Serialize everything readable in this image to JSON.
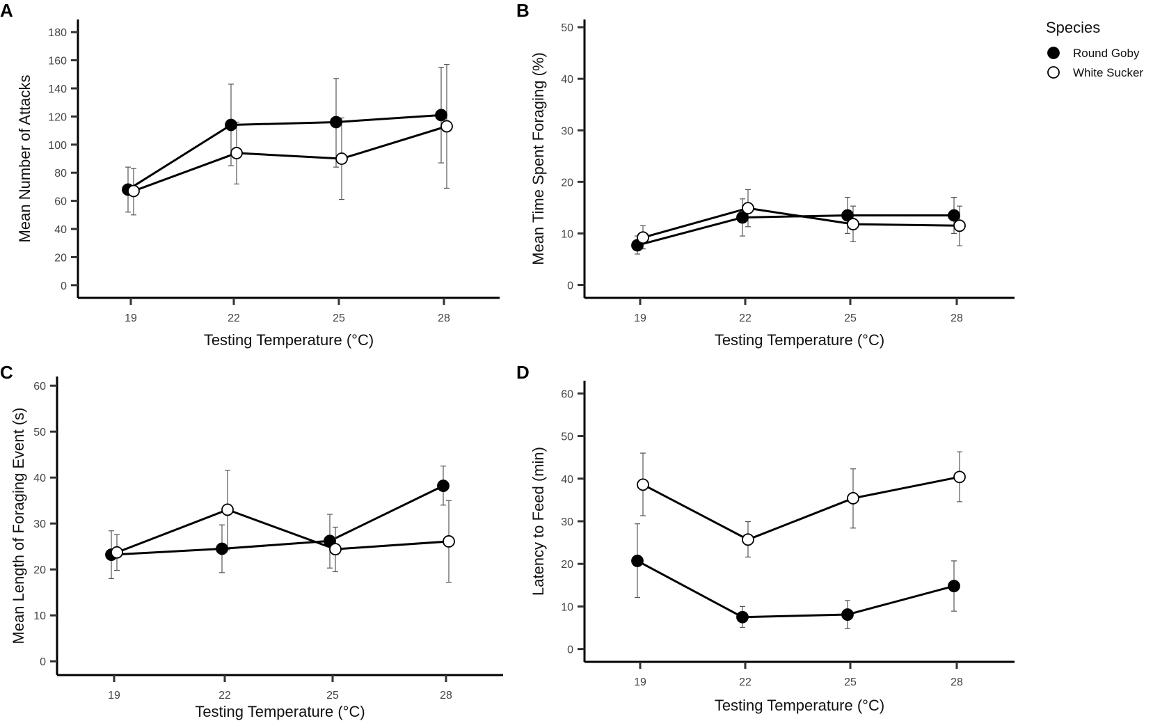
{
  "legend": {
    "title": "Species",
    "items": [
      {
        "label": "Round Goby",
        "fill": "#000000"
      },
      {
        "label": "White Sucker",
        "fill": "#ffffff"
      }
    ]
  },
  "colors": {
    "axis": "#000000",
    "round_goby": "#000000",
    "white_sucker": "#ffffff",
    "error_bar": "#555555"
  },
  "chart_data": [
    {
      "panel": "A",
      "type": "line",
      "xlabel": "Testing Temperature (°C)",
      "ylabel": "Mean Number of Attacks",
      "categories": [
        "19",
        "22",
        "25",
        "28"
      ],
      "yticks": [
        0,
        20,
        40,
        60,
        80,
        100,
        120,
        140,
        160,
        180
      ],
      "ylim": [
        -9,
        189
      ],
      "series": [
        {
          "name": "Round Goby",
          "values": [
            68,
            114,
            116,
            121
          ],
          "err_low": [
            52,
            85,
            84,
            87
          ],
          "err_high": [
            84,
            143,
            147,
            155
          ]
        },
        {
          "name": "White Sucker",
          "values": [
            67,
            94,
            90,
            113
          ],
          "err_low": [
            50,
            72,
            61,
            69
          ],
          "err_high": [
            83,
            116,
            119,
            157
          ]
        }
      ]
    },
    {
      "panel": "B",
      "type": "line",
      "xlabel": "Testing Temperature (°C)",
      "ylabel": "Mean Time Spent Foraging (%)",
      "categories": [
        "19",
        "22",
        "25",
        "28"
      ],
      "yticks": [
        0,
        10,
        20,
        30,
        40,
        50
      ],
      "ylim": [
        -2.5,
        51.5
      ],
      "series": [
        {
          "name": "Round Goby",
          "values": [
            7.7,
            13.1,
            13.5,
            13.5
          ],
          "err_low": [
            6.0,
            9.5,
            10.0,
            10.0
          ],
          "err_high": [
            9.5,
            16.7,
            17.0,
            17.0
          ]
        },
        {
          "name": "White Sucker",
          "values": [
            9.2,
            14.9,
            11.8,
            11.5
          ],
          "err_low": [
            7.0,
            11.3,
            8.4,
            7.6
          ],
          "err_high": [
            11.5,
            18.5,
            15.3,
            15.3
          ]
        }
      ]
    },
    {
      "panel": "C",
      "type": "line",
      "xlabel": "Testing Temperature (°C)",
      "ylabel": "Mean Length of Foraging Event (s)",
      "categories": [
        "19",
        "22",
        "25",
        "28"
      ],
      "yticks": [
        0,
        10,
        20,
        30,
        40,
        50,
        60
      ],
      "ylim": [
        -3,
        62
      ],
      "series": [
        {
          "name": "Round Goby",
          "values": [
            23.2,
            24.5,
            26.2,
            38.2
          ],
          "err_low": [
            18,
            19.3,
            20.3,
            34
          ],
          "err_high": [
            28.4,
            29.7,
            32,
            42.5
          ]
        },
        {
          "name": "White Sucker",
          "values": [
            23.7,
            33,
            24.4,
            26.1
          ],
          "err_low": [
            19.8,
            24.3,
            19.5,
            17.2
          ],
          "err_high": [
            27.6,
            41.6,
            29.2,
            35
          ]
        }
      ]
    },
    {
      "panel": "D",
      "type": "line",
      "xlabel": "Testing Temperature (°C)",
      "ylabel": "Latency to Feed (min)",
      "categories": [
        "19",
        "22",
        "25",
        "28"
      ],
      "yticks": [
        0,
        10,
        20,
        30,
        40,
        50,
        60
      ],
      "ylim": [
        -3,
        63
      ],
      "series": [
        {
          "name": "Round Goby",
          "values": [
            20.7,
            7.5,
            8.1,
            14.8
          ],
          "err_low": [
            12.1,
            5.1,
            4.8,
            8.9
          ],
          "err_high": [
            29.4,
            10,
            11.4,
            20.7
          ]
        },
        {
          "name": "White Sucker",
          "values": [
            38.6,
            25.7,
            35.4,
            40.4
          ],
          "err_low": [
            31.3,
            21.6,
            28.4,
            34.6
          ],
          "err_high": [
            46,
            29.9,
            42.3,
            46.3
          ]
        }
      ]
    }
  ]
}
